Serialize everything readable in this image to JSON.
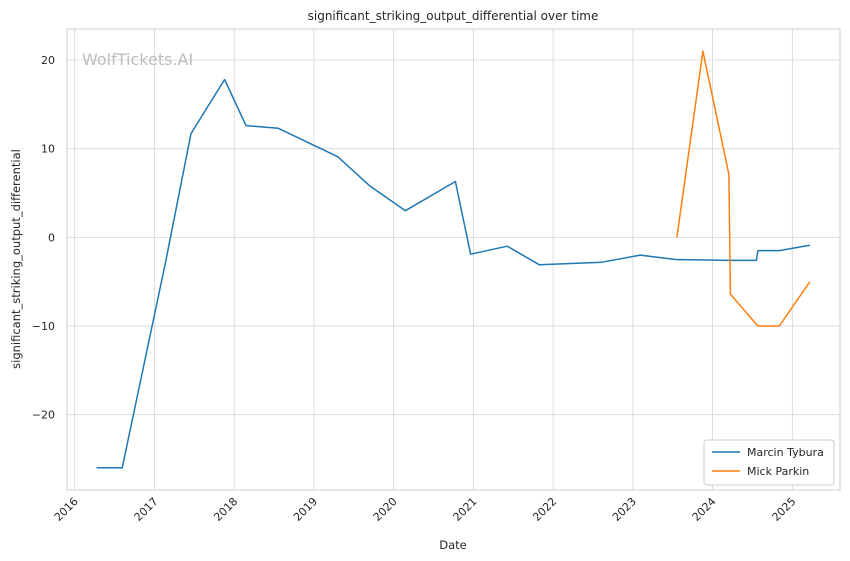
{
  "chart_data": {
    "type": "line",
    "title": "significant_striking_output_differential over time",
    "xlabel": "Date",
    "ylabel": "significant_striking_output_differential",
    "watermark": "WolfTickets.AI",
    "x_ticks": [
      "2016",
      "2017",
      "2018",
      "2019",
      "2020",
      "2021",
      "2022",
      "2023",
      "2024",
      "2025"
    ],
    "y_ticks": [
      {
        "value": 20,
        "label": "20"
      },
      {
        "value": 10,
        "label": "10"
      },
      {
        "value": 0,
        "label": "0"
      },
      {
        "value": -10,
        "label": "−10"
      },
      {
        "value": -20,
        "label": "−20"
      }
    ],
    "xlim": [
      "2015-11-27",
      "2025-08-07"
    ],
    "ylim": [
      -28.5,
      23.5
    ],
    "grid": true,
    "legend_position": "bottom-right",
    "series": [
      {
        "name": "Marcin Tybura",
        "color": "#1f77b4",
        "points": [
          [
            "2016-04-10",
            -26
          ],
          [
            "2016-08-06",
            -26
          ],
          [
            "2017-02-19",
            -3
          ],
          [
            "2017-06-17",
            11.7
          ],
          [
            "2017-11-18",
            17.8
          ],
          [
            "2018-02-24",
            12.6
          ],
          [
            "2018-07-22",
            12.3
          ],
          [
            "2019-04-20",
            9.1
          ],
          [
            "2019-09-14",
            5.8
          ],
          [
            "2020-02-24",
            3
          ],
          [
            "2020-10-10",
            6.3
          ],
          [
            "2020-12-19",
            -1.9
          ],
          [
            "2021-06-05",
            -1
          ],
          [
            "2021-10-30",
            -3.1
          ],
          [
            "2022-08-13",
            -2.8
          ],
          [
            "2023-02-04",
            -2
          ],
          [
            "2023-07-15",
            -2.5
          ],
          [
            "2024-03-16",
            -2.6
          ],
          [
            "2024-07-20",
            -2.6
          ],
          [
            "2024-07-27",
            -1.5
          ],
          [
            "2024-11-02",
            -1.5
          ],
          [
            "2025-03-22",
            -0.9
          ]
        ]
      },
      {
        "name": "Mick Parkin",
        "color": "#ff7f0e",
        "points": [
          [
            "2023-07-22",
            0
          ],
          [
            "2023-11-18",
            21
          ],
          [
            "2024-03-16",
            7.1
          ],
          [
            "2024-03-23",
            -6.4
          ],
          [
            "2024-07-27",
            -10
          ],
          [
            "2024-11-02",
            -10
          ],
          [
            "2025-03-22",
            -5
          ]
        ]
      }
    ]
  }
}
